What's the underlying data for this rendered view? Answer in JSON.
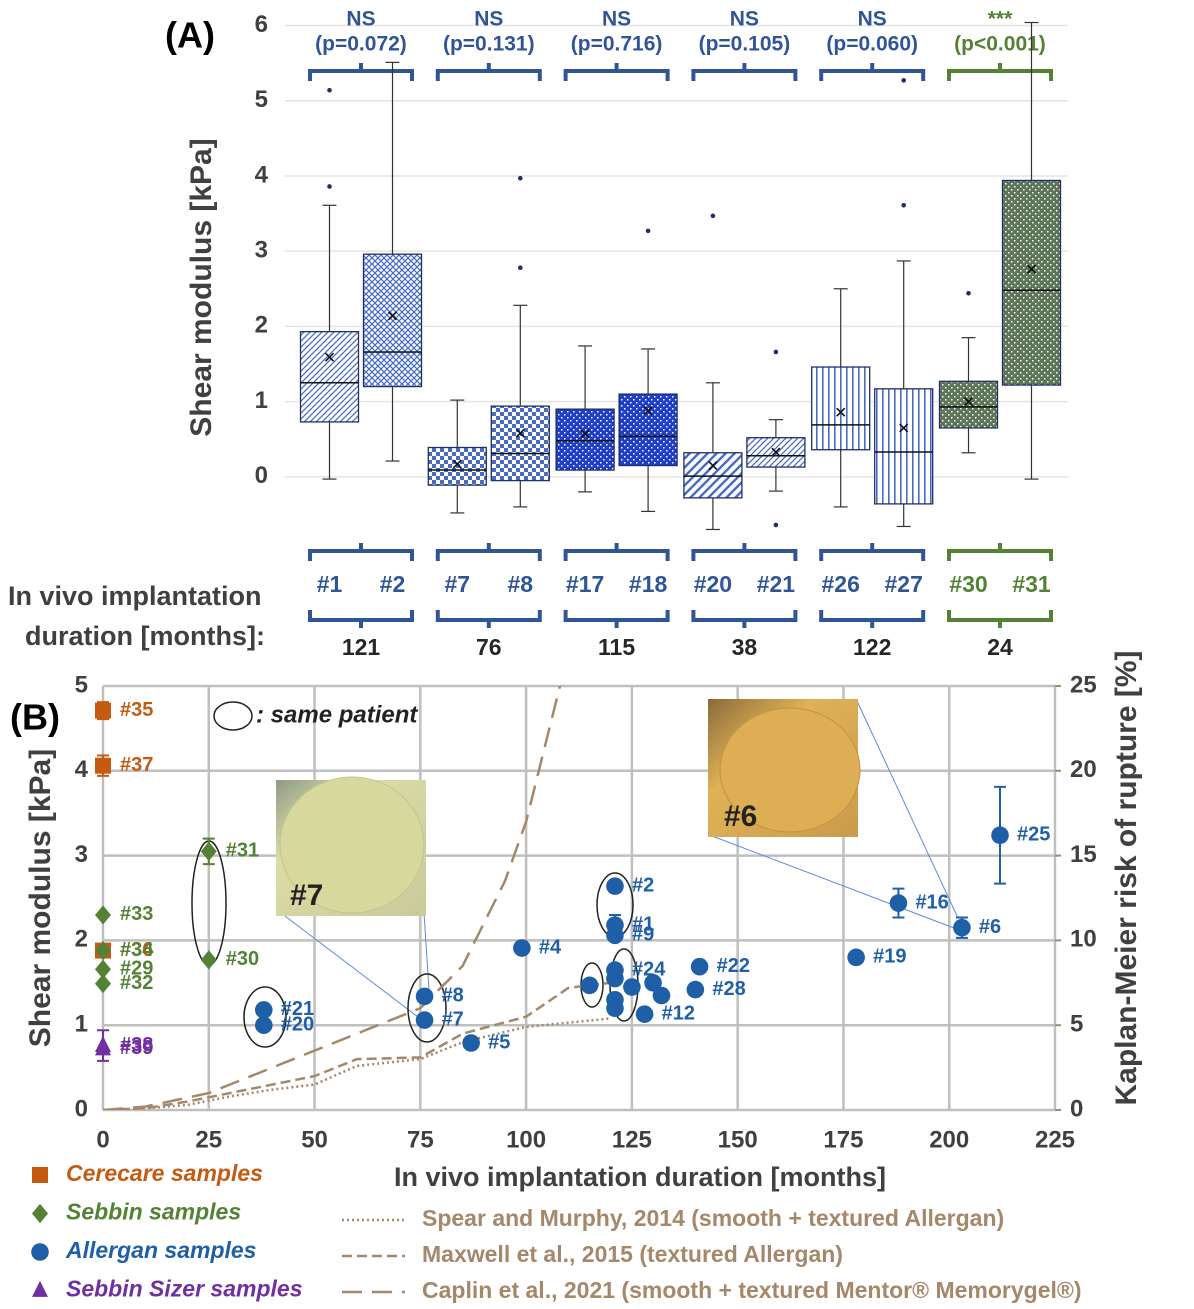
{
  "chart_data": [
    {
      "type": "box",
      "panel": "(A)",
      "y_label": "Shear modulus [kPa]",
      "x_label_lines": [
        "In vivo implantation",
        "duration [months]:"
      ],
      "ylim": [
        -0.8,
        6.1
      ],
      "yticks": [
        0,
        1,
        2,
        3,
        4,
        5,
        6
      ],
      "grid": true,
      "groups": [
        {
          "significance": "NS",
          "p_value": "(p=0.072)",
          "duration": 121,
          "color": "#2f5597",
          "boxes": [
            {
              "name": "#1",
              "color": "#4a6cc0",
              "pattern": "diag",
              "min": -0.03,
              "q1": 0.73,
              "median": 1.25,
              "q3": 1.93,
              "max": 3.61,
              "mean": 1.59,
              "outliers": [
                3.86,
                5.14
              ]
            },
            {
              "name": "#2",
              "color": "#4a6cc0",
              "pattern": "cross",
              "min": 0.21,
              "q1": 1.2,
              "median": 1.66,
              "q3": 2.96,
              "max": 5.51,
              "mean": 2.14,
              "outliers": []
            }
          ]
        },
        {
          "significance": "NS",
          "p_value": "(p=0.131)",
          "duration": 76,
          "color": "#2f5597",
          "boxes": [
            {
              "name": "#7",
              "color": "#4a6cc0",
              "pattern": "check",
              "min": -0.48,
              "q1": -0.11,
              "median": 0.09,
              "q3": 0.39,
              "max": 1.02,
              "mean": 0.17,
              "outliers": []
            },
            {
              "name": "#8",
              "color": "#4a6cc0",
              "pattern": "check",
              "min": -0.4,
              "q1": -0.05,
              "median": 0.31,
              "q3": 0.94,
              "max": 2.28,
              "mean": 0.58,
              "outliers": [
                2.78,
                3.97
              ]
            }
          ]
        },
        {
          "significance": "NS",
          "p_value": "(p=0.716)",
          "duration": 115,
          "color": "#2f5597",
          "boxes": [
            {
              "name": "#17",
              "color": "#1f3fc4",
              "pattern": "dense",
              "min": -0.2,
              "q1": 0.09,
              "median": 0.48,
              "q3": 0.9,
              "max": 1.74,
              "mean": 0.57,
              "outliers": []
            },
            {
              "name": "#18",
              "color": "#1f3fc4",
              "pattern": "dense",
              "min": -0.46,
              "q1": 0.15,
              "median": 0.54,
              "q3": 1.1,
              "max": 1.7,
              "mean": 0.88,
              "outliers": [
                3.27
              ]
            }
          ]
        },
        {
          "significance": "NS",
          "p_value": "(p=0.105)",
          "duration": 38,
          "color": "#2f5597",
          "boxes": [
            {
              "name": "#20",
              "color": "#4a6cc0",
              "pattern": "wide",
              "min": -0.7,
              "q1": -0.28,
              "median": 0.01,
              "q3": 0.32,
              "max": 1.25,
              "mean": 0.15,
              "outliers": [
                3.47
              ]
            },
            {
              "name": "#21",
              "color": "#4a6cc0",
              "pattern": "diag",
              "min": -0.19,
              "q1": 0.13,
              "median": 0.28,
              "q3": 0.52,
              "max": 0.76,
              "mean": 0.33,
              "outliers": [
                1.66,
                -0.64
              ]
            }
          ]
        },
        {
          "significance": "NS",
          "p_value": "(p=0.060)",
          "duration": 122,
          "color": "#2f5597",
          "boxes": [
            {
              "name": "#26",
              "color": "#4a6cc0",
              "pattern": "vert",
              "min": -0.4,
              "q1": 0.36,
              "median": 0.69,
              "q3": 1.46,
              "max": 2.5,
              "mean": 0.86,
              "outliers": []
            },
            {
              "name": "#27",
              "color": "#4a6cc0",
              "pattern": "vert",
              "min": -0.66,
              "q1": -0.36,
              "median": 0.33,
              "q3": 1.17,
              "max": 2.87,
              "mean": 0.65,
              "outliers": [
                3.61,
                5.27
              ]
            }
          ]
        },
        {
          "significance": "***",
          "p_value": "(p<0.001)",
          "duration": 24,
          "color": "#548235",
          "boxes": [
            {
              "name": "#30",
              "color": "#5f7558",
              "pattern": "dense",
              "min": 0.32,
              "q1": 0.65,
              "median": 0.93,
              "q3": 1.27,
              "max": 1.85,
              "mean": 1.0,
              "outliers": [
                2.44
              ]
            },
            {
              "name": "#31",
              "color": "#5f7558",
              "pattern": "dense",
              "min": -0.03,
              "q1": 1.22,
              "median": 2.48,
              "q3": 3.94,
              "max": 6.04,
              "mean": 2.76,
              "outliers": []
            }
          ]
        }
      ]
    },
    {
      "type": "scatter",
      "panel": "(B)",
      "x_label": "In vivo implantation duration [months]",
      "y_label": "Shear modulus [kPa]",
      "y2_label": "Kaplan-Meier risk of rupture [%]",
      "annotation": ": same patient",
      "insets": [
        {
          "label": "#7"
        },
        {
          "label": "#6"
        }
      ],
      "xlim": [
        0,
        225
      ],
      "xticks": [
        0,
        25,
        50,
        75,
        100,
        125,
        150,
        175,
        200,
        225
      ],
      "ylim": [
        0,
        5
      ],
      "yticks": [
        0,
        1,
        2,
        3,
        4,
        5
      ],
      "y2lim": [
        0,
        25
      ],
      "y2ticks": [
        0,
        5,
        10,
        15,
        20,
        25
      ],
      "grid": true,
      "series": [
        {
          "name": "Cerecare samples",
          "color": "#c55a11",
          "marker": "square",
          "x": [
            0,
            0,
            0
          ],
          "values": [
            4.71,
            4.06,
            1.88
          ],
          "errors": [
            0.1,
            0.12,
            null
          ],
          "labels": [
            "#35",
            "#37",
            "#36"
          ]
        },
        {
          "name": "Sebbin samples",
          "color": "#548235",
          "marker": "diamond",
          "x": [
            25,
            25,
            0,
            0,
            0,
            0
          ],
          "values": [
            3.05,
            1.77,
            2.3,
            1.88,
            1.66,
            1.49
          ],
          "errors": [
            0.15,
            null,
            null,
            null,
            null,
            null
          ],
          "labels": [
            "#31",
            "#30",
            "#33",
            "#34",
            "#29",
            "#32"
          ]
        },
        {
          "name": "Allergan samples",
          "color": "#1f5fa8",
          "marker": "circle",
          "x": [
            38,
            38,
            76,
            76,
            87,
            99,
            121,
            121,
            121,
            121,
            141,
            140,
            128,
            178,
            188,
            203,
            212,
            115,
            121,
            121,
            121,
            125,
            130,
            132
          ],
          "values": [
            1.18,
            1.0,
            1.34,
            1.06,
            0.79,
            1.91,
            2.64,
            2.18,
            2.06,
            1.65,
            1.69,
            1.42,
            1.13,
            1.8,
            2.44,
            2.15,
            3.24,
            1.47,
            1.55,
            1.3,
            1.2,
            1.45,
            1.5,
            1.35
          ],
          "errors": [
            null,
            null,
            null,
            null,
            null,
            null,
            null,
            0.12,
            null,
            null,
            null,
            null,
            null,
            null,
            0.17,
            0.12,
            0.57,
            null,
            null,
            null,
            null,
            null,
            null,
            null
          ],
          "labels": [
            "#21",
            "#20",
            "#8",
            "#7",
            "#5",
            "#4",
            "#2",
            "#1",
            "#9",
            "#24",
            "#22",
            "#28",
            "#12",
            "#19",
            "#16",
            "#6",
            "#25",
            null,
            null,
            null,
            null,
            null,
            null,
            null
          ]
        },
        {
          "name": "Sebbin Sizer samples",
          "color": "#7030a0",
          "marker": "triangle",
          "x": [
            0,
            0
          ],
          "values": [
            0.76,
            0.72
          ],
          "errors": [
            0.18,
            null
          ],
          "labels": [
            "#38",
            "#39"
          ]
        },
        {
          "name": "Spear and Murphy, 2014 (smooth + textured Allergan)",
          "type": "line",
          "dash": "dotted",
          "axis": "y2",
          "color": "#a5876a",
          "x": [
            0,
            10,
            20,
            30,
            40,
            50,
            60,
            75,
            85,
            100,
            120
          ],
          "values": [
            0,
            0.1,
            0.3,
            0.8,
            1.2,
            1.5,
            2.6,
            3.0,
            4.0,
            4.9,
            5.4
          ]
        },
        {
          "name": "Maxwell et al., 2015 (textured Allergan)",
          "type": "line",
          "dash": "dashed",
          "axis": "y2",
          "color": "#a5876a",
          "x": [
            0,
            10,
            20,
            30,
            40,
            50,
            60,
            75,
            85,
            100,
            110,
            120
          ],
          "values": [
            0,
            0.1,
            0.5,
            1.0,
            1.5,
            2.0,
            3.0,
            3.1,
            4.5,
            5.5,
            7.2,
            7.5
          ]
        },
        {
          "name": "Caplin et al., 2021 (smooth + textured Mentor® Memorygel®)",
          "type": "line",
          "dash": "longdash",
          "axis": "y2",
          "color": "#a5876a",
          "x": [
            0,
            10,
            25,
            40,
            50,
            60,
            75,
            85,
            95,
            100,
            105,
            110,
            118
          ],
          "values": [
            0,
            0.2,
            1.0,
            2.5,
            3.5,
            4.5,
            6.0,
            8.5,
            13.5,
            17,
            22,
            27,
            32
          ]
        }
      ]
    }
  ]
}
